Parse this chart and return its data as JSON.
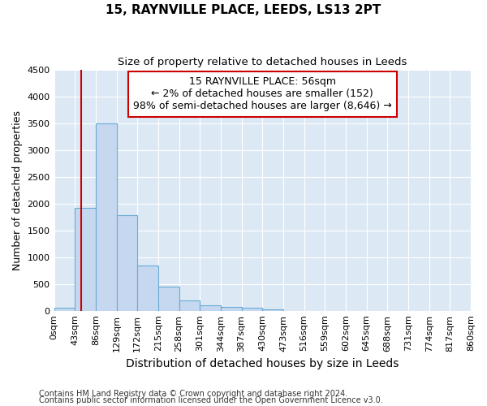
{
  "title": "15, RAYNVILLE PLACE, LEEDS, LS13 2PT",
  "subtitle": "Size of property relative to detached houses in Leeds",
  "xlabel": "Distribution of detached houses by size in Leeds",
  "ylabel": "Number of detached properties",
  "bar_color": "#c5d8f0",
  "bar_edge_color": "#6aaad4",
  "background_color": "#dce9f5",
  "grid_color": "#ffffff",
  "bin_edges": [
    0,
    43,
    86,
    129,
    172,
    215,
    258,
    301,
    344,
    387,
    430,
    473,
    516,
    559,
    602,
    645,
    688,
    731,
    774,
    817,
    860
  ],
  "bin_labels": [
    "0sqm",
    "43sqm",
    "86sqm",
    "129sqm",
    "172sqm",
    "215sqm",
    "258sqm",
    "301sqm",
    "344sqm",
    "387sqm",
    "430sqm",
    "473sqm",
    "516sqm",
    "559sqm",
    "602sqm",
    "645sqm",
    "688sqm",
    "731sqm",
    "774sqm",
    "817sqm",
    "860sqm"
  ],
  "bar_heights": [
    50,
    1920,
    3500,
    1775,
    850,
    450,
    185,
    100,
    75,
    50,
    30,
    0,
    0,
    0,
    0,
    0,
    0,
    0,
    0,
    0
  ],
  "property_line_x": 56,
  "property_line_color": "#cc0000",
  "annotation_line1": "15 RAYNVILLE PLACE: 56sqm",
  "annotation_line2": "← 2% of detached houses are smaller (152)",
  "annotation_line3": "98% of semi-detached houses are larger (8,646) →",
  "annotation_box_color": "#ffffff",
  "annotation_box_edge_color": "#cc0000",
  "ylim": [
    0,
    4500
  ],
  "yticks": [
    0,
    500,
    1000,
    1500,
    2000,
    2500,
    3000,
    3500,
    4000,
    4500
  ],
  "footer_line1": "Contains HM Land Registry data © Crown copyright and database right 2024.",
  "footer_line2": "Contains public sector information licensed under the Open Government Licence v3.0.",
  "title_fontsize": 11,
  "subtitle_fontsize": 9.5,
  "xlabel_fontsize": 10,
  "ylabel_fontsize": 9,
  "tick_fontsize": 8,
  "annotation_fontsize": 9,
  "footer_fontsize": 7
}
